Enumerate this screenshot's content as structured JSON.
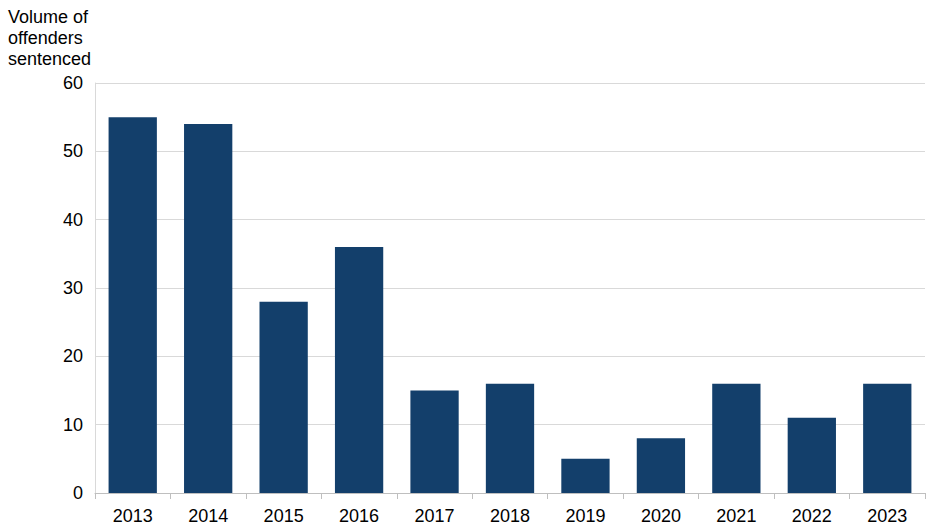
{
  "chart_data": {
    "type": "bar",
    "ylabel": "Volume of\noffenders\nsentenced",
    "categories": [
      "2013",
      "2014",
      "2015",
      "2016",
      "2017",
      "2018",
      "2019",
      "2020",
      "2021",
      "2022",
      "2023"
    ],
    "values": [
      55,
      54,
      28,
      36,
      15,
      16,
      5,
      8,
      16,
      11,
      16
    ],
    "color": "#133f6b",
    "ylim": [
      0,
      60
    ],
    "yticks": [
      0,
      10,
      20,
      30,
      40,
      50,
      60
    ],
    "grid": true
  }
}
